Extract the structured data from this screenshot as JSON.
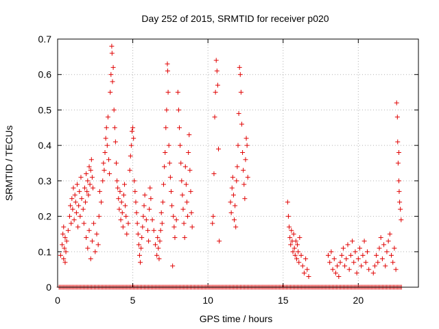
{
  "chart_data": {
    "type": "scatter",
    "title": "Day 252 of 2015, SRMTID for receiver p020",
    "xlabel": "GPS time / hours",
    "ylabel": "SRMTID / TECUs",
    "xlim": [
      0,
      24
    ],
    "ylim": [
      0,
      0.7
    ],
    "x_ticks": [
      0,
      5,
      10,
      15,
      20
    ],
    "y_ticks": [
      0,
      0.1,
      0.2,
      0.3,
      0.4,
      0.5,
      0.6,
      0.7
    ],
    "x_tick_labels": [
      "0",
      "5",
      "10",
      "15",
      "20"
    ],
    "y_tick_labels": [
      "0",
      "0.1",
      "0.2",
      "0.3",
      "0.4",
      "0.5",
      "0.6",
      "0.7"
    ],
    "grid": true,
    "marker": "+",
    "color": "#e00000",
    "series": [
      {
        "name": "SRMTID",
        "points": [
          [
            0.2,
            0.09
          ],
          [
            0.3,
            0.12
          ],
          [
            0.35,
            0.15
          ],
          [
            0.4,
            0.08
          ],
          [
            0.45,
            0.11
          ],
          [
            0.5,
            0.14
          ],
          [
            0.55,
            0.1
          ],
          [
            0.6,
            0.13
          ],
          [
            0.4,
            0.17
          ],
          [
            0.5,
            0.07
          ],
          [
            0.7,
            0.16
          ],
          [
            0.8,
            0.2
          ],
          [
            0.85,
            0.23
          ],
          [
            0.9,
            0.18
          ],
          [
            0.95,
            0.25
          ],
          [
            1.0,
            0.22
          ],
          [
            1.05,
            0.28
          ],
          [
            1.1,
            0.19
          ],
          [
            1.15,
            0.26
          ],
          [
            1.2,
            0.24
          ],
          [
            1.25,
            0.21
          ],
          [
            1.3,
            0.29
          ],
          [
            1.35,
            0.17
          ],
          [
            1.4,
            0.23
          ],
          [
            1.45,
            0.27
          ],
          [
            1.5,
            0.2
          ],
          [
            1.55,
            0.31
          ],
          [
            1.6,
            0.25
          ],
          [
            1.7,
            0.22
          ],
          [
            1.75,
            0.18
          ],
          [
            1.8,
            0.28
          ],
          [
            1.85,
            0.24
          ],
          [
            1.9,
            0.32
          ],
          [
            1.95,
            0.27
          ],
          [
            2.0,
            0.3
          ],
          [
            2.05,
            0.26
          ],
          [
            2.1,
            0.34
          ],
          [
            2.15,
            0.29
          ],
          [
            2.2,
            0.33
          ],
          [
            2.25,
            0.36
          ],
          [
            2.3,
            0.31
          ],
          [
            2.35,
            0.28
          ],
          [
            1.9,
            0.14
          ],
          [
            2.0,
            0.11
          ],
          [
            2.1,
            0.16
          ],
          [
            2.2,
            0.08
          ],
          [
            2.3,
            0.13
          ],
          [
            2.4,
            0.18
          ],
          [
            2.5,
            0.1
          ],
          [
            2.6,
            0.15
          ],
          [
            2.7,
            0.12
          ],
          [
            2.75,
            0.2
          ],
          [
            2.8,
            0.27
          ],
          [
            2.9,
            0.24
          ],
          [
            3.0,
            0.3
          ],
          [
            3.05,
            0.35
          ],
          [
            3.1,
            0.33
          ],
          [
            3.15,
            0.38
          ],
          [
            3.2,
            0.42
          ],
          [
            3.25,
            0.45
          ],
          [
            3.3,
            0.4
          ],
          [
            3.35,
            0.48
          ],
          [
            3.4,
            0.36
          ],
          [
            3.45,
            0.32
          ],
          [
            3.5,
            0.55
          ],
          [
            3.55,
            0.6
          ],
          [
            3.6,
            0.68
          ],
          [
            3.62,
            0.66
          ],
          [
            3.65,
            0.58
          ],
          [
            3.7,
            0.62
          ],
          [
            3.75,
            0.5
          ],
          [
            3.8,
            0.45
          ],
          [
            3.85,
            0.41
          ],
          [
            3.9,
            0.35
          ],
          [
            3.95,
            0.3
          ],
          [
            4.0,
            0.28
          ],
          [
            4.05,
            0.25
          ],
          [
            4.1,
            0.22
          ],
          [
            4.15,
            0.27
          ],
          [
            4.2,
            0.19
          ],
          [
            4.25,
            0.24
          ],
          [
            4.3,
            0.21
          ],
          [
            4.35,
            0.17
          ],
          [
            4.4,
            0.26
          ],
          [
            4.45,
            0.29
          ],
          [
            4.5,
            0.23
          ],
          [
            4.55,
            0.2
          ],
          [
            4.6,
            0.15
          ],
          [
            4.7,
            0.18
          ],
          [
            4.8,
            0.33
          ],
          [
            4.85,
            0.37
          ],
          [
            4.9,
            0.4
          ],
          [
            4.95,
            0.44
          ],
          [
            5.0,
            0.45
          ],
          [
            5.05,
            0.42
          ],
          [
            5.1,
            0.3
          ],
          [
            5.15,
            0.27
          ],
          [
            5.2,
            0.24
          ],
          [
            5.25,
            0.21
          ],
          [
            5.3,
            0.18
          ],
          [
            5.35,
            0.15
          ],
          [
            5.4,
            0.12
          ],
          [
            5.45,
            0.09
          ],
          [
            5.5,
            0.07
          ],
          [
            5.55,
            0.11
          ],
          [
            5.6,
            0.14
          ],
          [
            5.65,
            0.17
          ],
          [
            5.7,
            0.2
          ],
          [
            5.75,
            0.23
          ],
          [
            5.8,
            0.26
          ],
          [
            5.9,
            0.19
          ],
          [
            6.0,
            0.16
          ],
          [
            6.05,
            0.13
          ],
          [
            6.1,
            0.22
          ],
          [
            6.15,
            0.28
          ],
          [
            6.2,
            0.25
          ],
          [
            6.3,
            0.19
          ],
          [
            6.4,
            0.16
          ],
          [
            6.5,
            0.12
          ],
          [
            6.6,
            0.09
          ],
          [
            6.65,
            0.14
          ],
          [
            6.7,
            0.11
          ],
          [
            6.75,
            0.08
          ],
          [
            6.8,
            0.13
          ],
          [
            6.85,
            0.16
          ],
          [
            6.9,
            0.21
          ],
          [
            6.95,
            0.18
          ],
          [
            7.0,
            0.24
          ],
          [
            7.05,
            0.29
          ],
          [
            7.1,
            0.34
          ],
          [
            7.15,
            0.38
          ],
          [
            7.2,
            0.45
          ],
          [
            7.25,
            0.5
          ],
          [
            7.3,
            0.63
          ],
          [
            7.32,
            0.61
          ],
          [
            7.35,
            0.55
          ],
          [
            7.4,
            0.4
          ],
          [
            7.45,
            0.35
          ],
          [
            7.5,
            0.31
          ],
          [
            7.55,
            0.27
          ],
          [
            7.6,
            0.23
          ],
          [
            7.65,
            0.06
          ],
          [
            7.7,
            0.2
          ],
          [
            7.75,
            0.17
          ],
          [
            7.8,
            0.14
          ],
          [
            7.9,
            0.19
          ],
          [
            8.0,
            0.55
          ],
          [
            8.05,
            0.5
          ],
          [
            8.1,
            0.45
          ],
          [
            8.15,
            0.4
          ],
          [
            8.2,
            0.35
          ],
          [
            8.25,
            0.3
          ],
          [
            8.3,
            0.26
          ],
          [
            8.35,
            0.22
          ],
          [
            8.4,
            0.18
          ],
          [
            8.45,
            0.14
          ],
          [
            8.5,
            0.34
          ],
          [
            8.55,
            0.29
          ],
          [
            8.6,
            0.24
          ],
          [
            8.65,
            0.2
          ],
          [
            8.7,
            0.38
          ],
          [
            8.75,
            0.43
          ],
          [
            8.8,
            0.33
          ],
          [
            8.85,
            0.27
          ],
          [
            8.9,
            0.21
          ],
          [
            8.95,
            0.17
          ],
          [
            10.3,
            0.18
          ],
          [
            10.35,
            0.2
          ],
          [
            10.4,
            0.32
          ],
          [
            10.45,
            0.48
          ],
          [
            10.5,
            0.55
          ],
          [
            10.55,
            0.64
          ],
          [
            10.6,
            0.61
          ],
          [
            10.65,
            0.57
          ],
          [
            10.7,
            0.39
          ],
          [
            10.75,
            0.13
          ],
          [
            11.5,
            0.24
          ],
          [
            11.55,
            0.21
          ],
          [
            11.6,
            0.28
          ],
          [
            11.65,
            0.31
          ],
          [
            11.7,
            0.26
          ],
          [
            11.75,
            0.19
          ],
          [
            11.8,
            0.23
          ],
          [
            11.85,
            0.17
          ],
          [
            11.9,
            0.3
          ],
          [
            11.95,
            0.34
          ],
          [
            12.0,
            0.4
          ],
          [
            12.05,
            0.49
          ],
          [
            12.1,
            0.62
          ],
          [
            12.15,
            0.6
          ],
          [
            12.2,
            0.55
          ],
          [
            12.25,
            0.46
          ],
          [
            12.3,
            0.38
          ],
          [
            12.35,
            0.33
          ],
          [
            12.4,
            0.29
          ],
          [
            12.45,
            0.25
          ],
          [
            12.5,
            0.36
          ],
          [
            12.55,
            0.42
          ],
          [
            12.6,
            0.4
          ],
          [
            12.65,
            0.31
          ],
          [
            15.3,
            0.24
          ],
          [
            15.35,
            0.2
          ],
          [
            15.4,
            0.17
          ],
          [
            15.45,
            0.14
          ],
          [
            15.5,
            0.12
          ],
          [
            15.55,
            0.16
          ],
          [
            15.6,
            0.13
          ],
          [
            15.65,
            0.1
          ],
          [
            15.7,
            0.15
          ],
          [
            15.75,
            0.11
          ],
          [
            15.8,
            0.09
          ],
          [
            15.85,
            0.13
          ],
          [
            15.9,
            0.08
          ],
          [
            15.95,
            0.12
          ],
          [
            16.0,
            0.1
          ],
          [
            16.05,
            0.07
          ],
          [
            16.1,
            0.14
          ],
          [
            16.2,
            0.09
          ],
          [
            16.3,
            0.06
          ],
          [
            16.4,
            0.04
          ],
          [
            16.5,
            0.08
          ],
          [
            16.6,
            0.05
          ],
          [
            16.7,
            0.03
          ],
          [
            18.0,
            0.09
          ],
          [
            18.1,
            0.07
          ],
          [
            18.2,
            0.1
          ],
          [
            18.3,
            0.05
          ],
          [
            18.4,
            0.08
          ],
          [
            18.5,
            0.04
          ],
          [
            18.6,
            0.06
          ],
          [
            18.7,
            0.03
          ],
          [
            18.8,
            0.07
          ],
          [
            18.9,
            0.09
          ],
          [
            19.0,
            0.11
          ],
          [
            19.1,
            0.06
          ],
          [
            19.2,
            0.08
          ],
          [
            19.3,
            0.12
          ],
          [
            19.4,
            0.05
          ],
          [
            19.5,
            0.09
          ],
          [
            19.6,
            0.13
          ],
          [
            19.7,
            0.07
          ],
          [
            19.8,
            0.1
          ],
          [
            19.9,
            0.04
          ],
          [
            20.0,
            0.08
          ],
          [
            20.1,
            0.11
          ],
          [
            20.2,
            0.06
          ],
          [
            20.3,
            0.09
          ],
          [
            20.4,
            0.13
          ],
          [
            20.5,
            0.07
          ],
          [
            20.6,
            0.1
          ],
          [
            20.7,
            0.05
          ],
          [
            21.0,
            0.04
          ],
          [
            21.1,
            0.06
          ],
          [
            21.2,
            0.09
          ],
          [
            21.3,
            0.07
          ],
          [
            21.4,
            0.11
          ],
          [
            21.5,
            0.14
          ],
          [
            21.6,
            0.08
          ],
          [
            21.7,
            0.12
          ],
          [
            21.8,
            0.06
          ],
          [
            21.9,
            0.1
          ],
          [
            22.0,
            0.13
          ],
          [
            22.1,
            0.15
          ],
          [
            22.2,
            0.09
          ],
          [
            22.3,
            0.07
          ],
          [
            22.4,
            0.11
          ],
          [
            22.5,
            0.05
          ],
          [
            22.55,
            0.52
          ],
          [
            22.6,
            0.48
          ],
          [
            22.62,
            0.41
          ],
          [
            22.65,
            0.35
          ],
          [
            22.7,
            0.3
          ],
          [
            22.72,
            0.27
          ],
          [
            22.75,
            0.24
          ],
          [
            22.8,
            0.22
          ],
          [
            22.85,
            0.19
          ],
          [
            22.7,
            0.38
          ]
        ]
      }
    ],
    "zero_band": {
      "x_start": 0.1,
      "x_end": 22.9,
      "y": 0
    }
  }
}
